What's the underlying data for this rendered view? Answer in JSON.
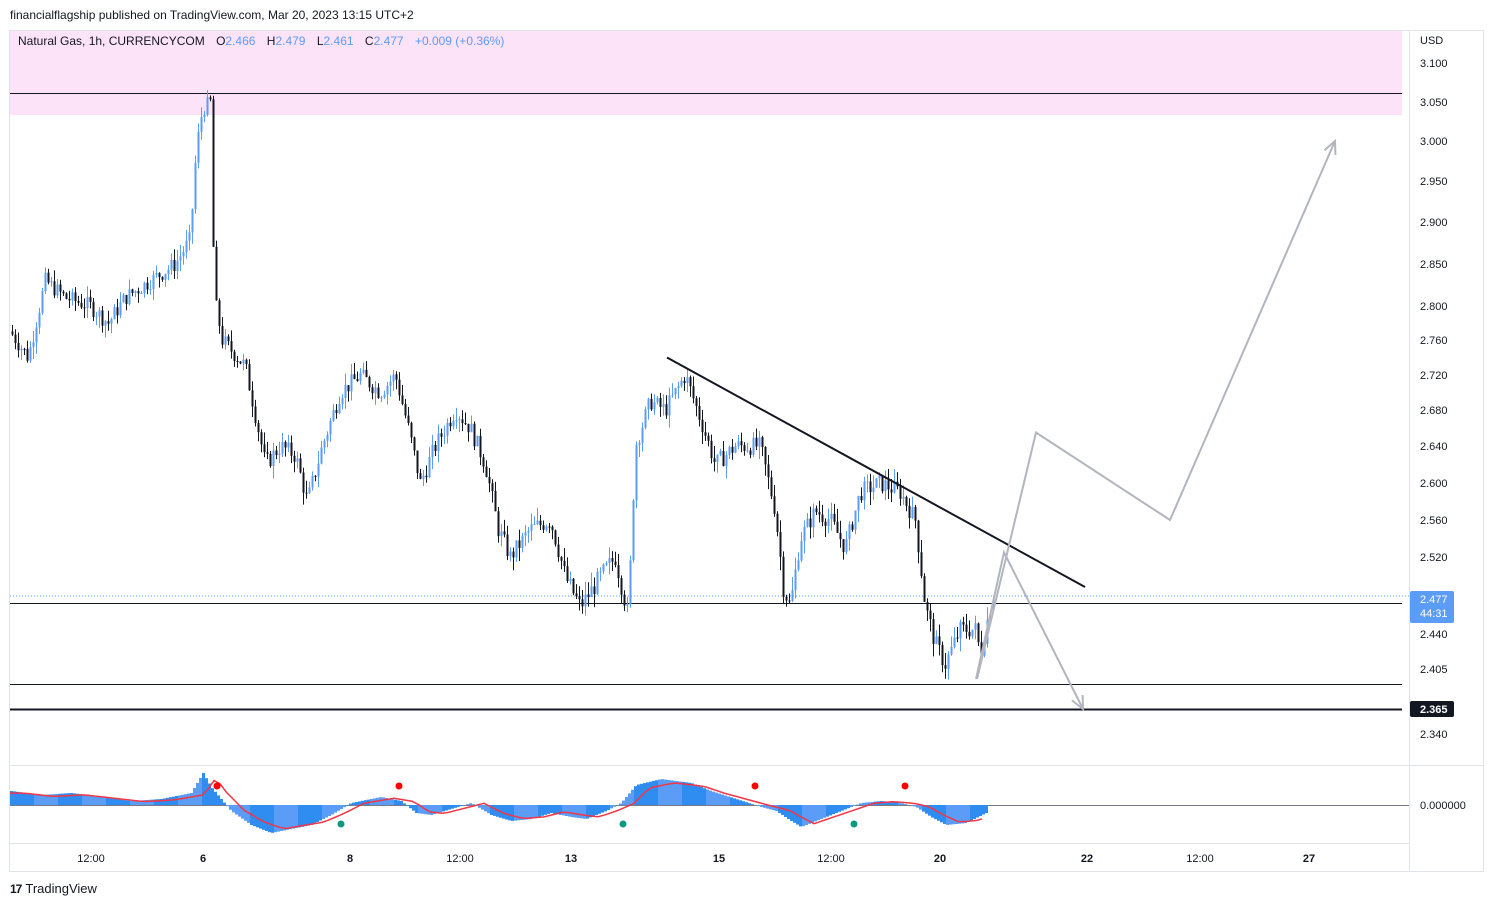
{
  "header": {
    "published_by": "financialflagship published on TradingView.com, Mar 20, 2023 13:15 UTC+2"
  },
  "legend": {
    "symbol": "Natural Gas, 1h, CURRENCYCOM",
    "o_label": "O",
    "o_value": "2.466",
    "h_label": "H",
    "h_value": "2.479",
    "l_label": "L",
    "l_value": "2.461",
    "c_label": "C",
    "c_value": "2.477",
    "change": "+0.009 (+0.36%)"
  },
  "footer": {
    "brand_mark": "17",
    "brand": "TradingView"
  },
  "colors": {
    "up": "#5b9cf6",
    "down": "#131722",
    "zone": "#fde3f8",
    "oscillator": "#2f8cf0",
    "signal": "#f23645",
    "projection": "#b2b5be",
    "dot_red": "#ff0000",
    "dot_green": "#089981"
  },
  "price_axis": {
    "currency": "USD",
    "ticks": [
      "3.100",
      "3.050",
      "3.000",
      "2.950",
      "2.900",
      "2.850",
      "2.800",
      "2.760",
      "2.720",
      "2.680",
      "2.640",
      "2.600",
      "2.560",
      "2.520",
      "2.440",
      "2.405",
      "2.340"
    ],
    "tick_values": [
      3.1,
      3.05,
      3.0,
      2.95,
      2.9,
      2.85,
      2.8,
      2.76,
      2.72,
      2.68,
      2.64,
      2.6,
      2.56,
      2.52,
      2.44,
      2.405,
      2.34
    ],
    "last_price_label": "2.477",
    "countdown": "44:31",
    "support_label": "2.365",
    "osc_label": "0.000000"
  },
  "time_axis": {
    "labels": [
      "12:00",
      "6",
      "8",
      "12:00",
      "13",
      "15",
      "12:00",
      "20",
      "22",
      "12:00",
      "27"
    ],
    "bold": [
      false,
      true,
      true,
      false,
      true,
      true,
      false,
      true,
      true,
      false,
      true
    ]
  },
  "chart_data": {
    "type": "candlestick",
    "symbol": "Natural Gas",
    "interval": "1h",
    "unit": "USD",
    "ohlc_last": {
      "open": 2.466,
      "high": 2.479,
      "low": 2.461,
      "close": 2.477
    },
    "resistance_zone": [
      3.035,
      3.14
    ],
    "horizontal_levels": [
      3.062,
      2.474,
      2.39,
      2.365
    ],
    "close_path": [
      [
        0,
        2.77
      ],
      [
        18,
        2.74
      ],
      [
        35,
        2.83
      ],
      [
        55,
        2.81
      ],
      [
        80,
        2.8
      ],
      [
        98,
        2.78
      ],
      [
        115,
        2.81
      ],
      [
        140,
        2.83
      ],
      [
        165,
        2.85
      ],
      [
        180,
        2.88
      ],
      [
        186,
        2.99
      ],
      [
        192,
        3.04
      ],
      [
        200,
        3.05
      ],
      [
        204,
        2.81
      ],
      [
        212,
        2.76
      ],
      [
        235,
        2.73
      ],
      [
        255,
        2.62
      ],
      [
        270,
        2.64
      ],
      [
        285,
        2.63
      ],
      [
        297,
        2.58
      ],
      [
        312,
        2.64
      ],
      [
        330,
        2.7
      ],
      [
        350,
        2.72
      ],
      [
        370,
        2.7
      ],
      [
        385,
        2.72
      ],
      [
        398,
        2.66
      ],
      [
        410,
        2.6
      ],
      [
        425,
        2.64
      ],
      [
        445,
        2.68
      ],
      [
        460,
        2.66
      ],
      [
        475,
        2.62
      ],
      [
        488,
        2.55
      ],
      [
        500,
        2.52
      ],
      [
        520,
        2.55
      ],
      [
        540,
        2.56
      ],
      [
        555,
        2.5
      ],
      [
        570,
        2.47
      ],
      [
        590,
        2.5
      ],
      [
        605,
        2.52
      ],
      [
        618,
        2.46
      ],
      [
        625,
        2.64
      ],
      [
        640,
        2.69
      ],
      [
        655,
        2.68
      ],
      [
        675,
        2.72
      ],
      [
        690,
        2.67
      ],
      [
        705,
        2.62
      ],
      [
        725,
        2.64
      ],
      [
        750,
        2.64
      ],
      [
        765,
        2.57
      ],
      [
        773,
        2.49
      ],
      [
        780,
        2.47
      ],
      [
        790,
        2.54
      ],
      [
        805,
        2.57
      ],
      [
        820,
        2.56
      ],
      [
        835,
        2.53
      ],
      [
        850,
        2.59
      ],
      [
        870,
        2.6
      ],
      [
        890,
        2.59
      ],
      [
        905,
        2.56
      ],
      [
        915,
        2.47
      ],
      [
        925,
        2.43
      ],
      [
        935,
        2.41
      ],
      [
        950,
        2.445
      ],
      [
        965,
        2.445
      ],
      [
        970,
        2.42
      ],
      [
        978,
        2.46
      ],
      [
        985,
        2.477
      ]
    ],
    "trendline": [
      [
        657,
        2.74
      ],
      [
        1075,
        2.49
      ]
    ],
    "projection": [
      [
        967,
        2.395
      ],
      [
        1026,
        2.655
      ],
      [
        1160,
        2.56
      ],
      [
        1325,
        3.0
      ]
    ],
    "alt_projection": [
      [
        966,
        2.395
      ],
      [
        994,
        2.525
      ],
      [
        1073,
        2.365
      ]
    ],
    "oscillator": {
      "zero_label": "0.000000",
      "red_dots": [
        217,
        399,
        755,
        905
      ],
      "green_dots": [
        341,
        623,
        854
      ]
    }
  }
}
